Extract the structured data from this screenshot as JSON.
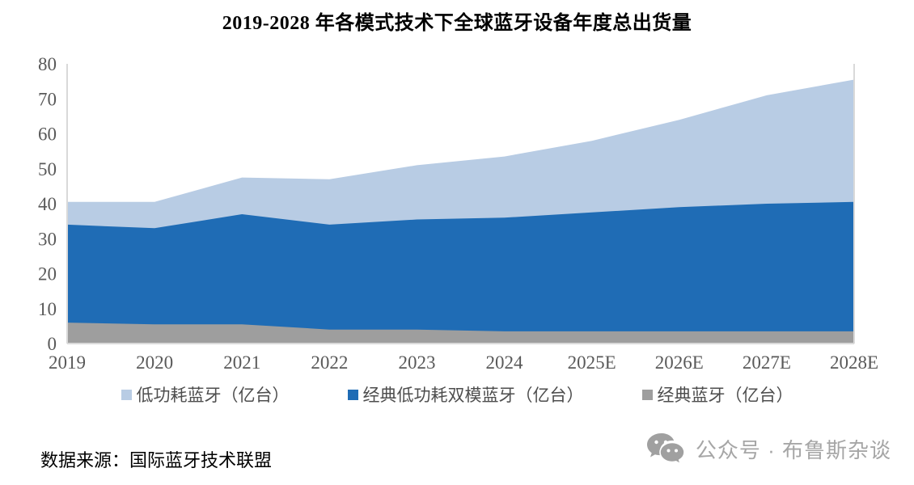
{
  "title": "2019-2028 年各模式技术下全球蓝牙设备年度总出货量",
  "source": "数据来源：国际蓝牙技术联盟",
  "watermark": {
    "icon": "wechat-icon",
    "text": "公众号 · 布鲁斯杂谈"
  },
  "colors": {
    "le_light_blue": "#B8CCE4",
    "dual_dark_blue": "#1F6CB5",
    "classic_gray": "#9E9E9E",
    "axis_label": "#595959",
    "plot_border": "#D9D9D9",
    "legend_text": "#4D4D4D",
    "watermark_gray": "#A6A6A6"
  },
  "chart_data": {
    "type": "area",
    "stacked": true,
    "title": "2019-2028 年各模式技术下全球蓝牙设备年度总出货量",
    "categories": [
      "2019",
      "2020",
      "2021",
      "2022",
      "2023",
      "2024",
      "2025E",
      "2026E",
      "2027E",
      "2028E"
    ],
    "series": [
      {
        "name": "经典蓝牙（亿台）",
        "color": "#9E9E9E",
        "values": [
          6,
          5.5,
          5.5,
          4,
          4,
          3.5,
          3.5,
          3.5,
          3.5,
          3.5
        ]
      },
      {
        "name": "经典低功耗双模蓝牙（亿台）",
        "color": "#1F6CB5",
        "values": [
          28,
          27.5,
          31.5,
          30,
          31.5,
          32.5,
          34,
          35.5,
          36.5,
          37
        ]
      },
      {
        "name": "低功耗蓝牙（亿台）",
        "color": "#B8CCE4",
        "values": [
          6.5,
          7.5,
          10.5,
          13,
          15.5,
          17.5,
          20.5,
          25,
          31,
          35
        ]
      }
    ],
    "cumulative_totals": [
      40.5,
      40.5,
      47.5,
      47,
      51,
      53.5,
      58,
      64,
      71,
      75.5
    ],
    "legend_order_top_to_bottom_stack": [
      "低功耗蓝牙（亿台）",
      "经典低功耗双模蓝牙（亿台）",
      "经典蓝牙（亿台）"
    ],
    "xlabel": "",
    "ylabel": "",
    "ylim": [
      0,
      80
    ],
    "yticks": [
      0,
      10,
      20,
      30,
      40,
      50,
      60,
      70,
      80
    ],
    "grid": false,
    "legend_position": "bottom"
  }
}
